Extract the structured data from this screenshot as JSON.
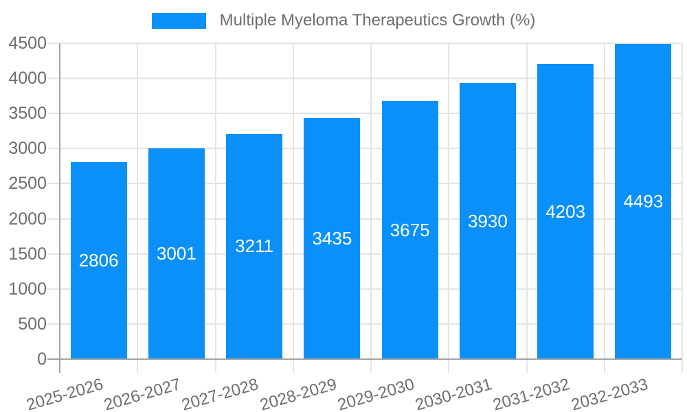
{
  "legend": {
    "label": "Multiple Myeloma Therapeutics Growth (%)"
  },
  "chart_data": {
    "type": "bar",
    "title": "Multiple Myeloma Therapeutics Growth (%)",
    "categories": [
      "2025-2026",
      "2026-2027",
      "2027-2028",
      "2028-2029",
      "2029-2030",
      "2030-2031",
      "2031-2032",
      "2032-2033"
    ],
    "values": [
      2806,
      3001,
      3211,
      3435,
      3675,
      3930,
      4203,
      4493
    ],
    "ylim": [
      0,
      4500
    ],
    "yticks": [
      0,
      500,
      1000,
      1500,
      2000,
      2500,
      3000,
      3500,
      4000,
      4500
    ],
    "xlabel": "",
    "ylabel": "",
    "grid": true,
    "legend_position": "top",
    "bar_color": "#0a90f8",
    "value_label_color": "#ffffff",
    "grid_color": "#e4e4e4",
    "axis_color": "#a3a3a3",
    "tick_label_color": "#6e6e6e"
  }
}
